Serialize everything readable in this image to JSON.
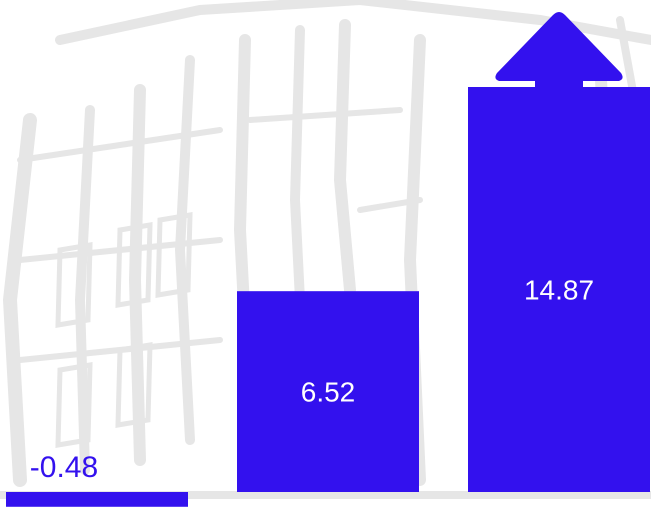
{
  "chart_data": {
    "type": "bar",
    "categories": [
      "",
      "",
      ""
    ],
    "values": [
      -0.48,
      6.52,
      14.87
    ],
    "value_labels": [
      "-0.48",
      "6.52",
      "14.87"
    ],
    "last_bar_extends_beyond_axis": true,
    "title": "",
    "xlabel": "",
    "ylabel": "",
    "legend": "none",
    "grid": false
  },
  "colors": {
    "bar": "#3311ee",
    "label_inside": "#ffffff",
    "label_outside": "#3311ee",
    "background_sketch": "#e6e6e6"
  },
  "icons": {
    "overflow_marker": "up-arrow-icon",
    "background": "building-sketch-watermark"
  }
}
